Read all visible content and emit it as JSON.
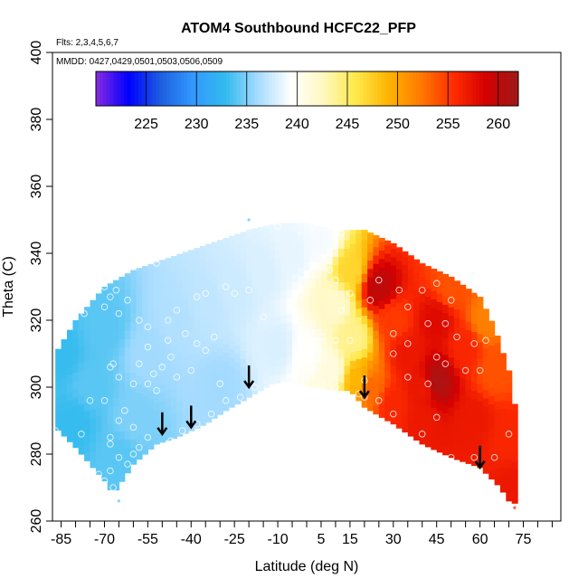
{
  "chart_data": {
    "type": "heatmap",
    "title": "ATOM4 Southbound HCFC22_PFP",
    "flights_label": "Flts: 2,3,4,5,6,7",
    "dates_label": "MMDD: 0427,0429,0501,0503,0506,0509",
    "xlabel": "Latitude (deg N)",
    "ylabel": "Theta (C)",
    "xlim": [
      -88,
      88
    ],
    "ylim": [
      260,
      400
    ],
    "x_ticks": [
      -85,
      -70,
      -55,
      -40,
      -25,
      -10,
      5,
      15,
      30,
      45,
      60,
      75
    ],
    "y_ticks": [
      260,
      280,
      300,
      320,
      340,
      360,
      380,
      400
    ],
    "colorbar": {
      "range": [
        220,
        262
      ],
      "ticks": [
        225,
        230,
        235,
        240,
        245,
        250,
        255,
        260
      ],
      "colors": [
        "#8a2be2",
        "#0000ff",
        "#1e5fe0",
        "#3399ff",
        "#33bbee",
        "#a8dcff",
        "#ffffff",
        "#fff8c0",
        "#ffe94a",
        "#ffb400",
        "#ff7a00",
        "#ff2d00",
        "#d40000",
        "#9e1a1a"
      ]
    },
    "envelope": {
      "top": [
        [
          -87,
          310
        ],
        [
          -80,
          320
        ],
        [
          -70,
          330
        ],
        [
          -60,
          335
        ],
        [
          -50,
          338
        ],
        [
          -40,
          341
        ],
        [
          -30,
          344
        ],
        [
          -20,
          347
        ],
        [
          -10,
          349
        ],
        [
          0,
          349
        ],
        [
          10,
          347
        ],
        [
          20,
          347
        ],
        [
          30,
          343
        ],
        [
          40,
          337
        ],
        [
          50,
          333
        ],
        [
          60,
          327
        ],
        [
          65,
          318
        ],
        [
          70,
          305
        ],
        [
          72,
          295
        ],
        [
          73,
          285
        ],
        [
          73,
          265
        ]
      ],
      "bottom": [
        [
          -87,
          288
        ],
        [
          -80,
          282
        ],
        [
          -70,
          272
        ],
        [
          -67,
          268
        ],
        [
          -60,
          277
        ],
        [
          -52,
          283
        ],
        [
          -45,
          285
        ],
        [
          -35,
          289
        ],
        [
          -28,
          293
        ],
        [
          -20,
          297
        ],
        [
          -12,
          301
        ],
        [
          -5,
          302
        ],
        [
          0,
          300
        ],
        [
          5,
          300
        ],
        [
          10,
          299
        ],
        [
          15,
          299
        ],
        [
          20,
          294
        ],
        [
          30,
          289
        ],
        [
          40,
          283
        ],
        [
          50,
          279
        ],
        [
          60,
          276
        ],
        [
          67,
          270
        ],
        [
          70,
          266
        ],
        [
          73,
          265
        ]
      ]
    },
    "field_nodes": [
      [
        -85,
        310,
        233
      ],
      [
        -70,
        318,
        234
      ],
      [
        -55,
        310,
        236
      ],
      [
        -45,
        320,
        236.5
      ],
      [
        -35,
        325,
        237
      ],
      [
        -25,
        330,
        237.5
      ],
      [
        -15,
        335,
        238
      ],
      [
        -5,
        340,
        238.5
      ],
      [
        5,
        343,
        239
      ],
      [
        -30,
        300,
        236
      ],
      [
        -10,
        312,
        238
      ],
      [
        0,
        310,
        239.5
      ],
      [
        8,
        305,
        241
      ],
      [
        10,
        325,
        242
      ],
      [
        15,
        335,
        247
      ],
      [
        16,
        315,
        244
      ],
      [
        18,
        302,
        249
      ],
      [
        22,
        300,
        253
      ],
      [
        25,
        330,
        260
      ],
      [
        30,
        320,
        255
      ],
      [
        35,
        310,
        257
      ],
      [
        40,
        300,
        257
      ],
      [
        45,
        320,
        258
      ],
      [
        45,
        302,
        261
      ],
      [
        50,
        330,
        254
      ],
      [
        55,
        312,
        256
      ],
      [
        58,
        290,
        257
      ],
      [
        62,
        320,
        252
      ],
      [
        65,
        305,
        254
      ],
      [
        70,
        285,
        256
      ],
      [
        72,
        270,
        257
      ],
      [
        40,
        290,
        257
      ],
      [
        30,
        295,
        256
      ],
      [
        -60,
        290,
        235
      ],
      [
        -75,
        300,
        234
      ],
      [
        -80,
        290,
        233
      ],
      [
        -65,
        280,
        234
      ]
    ],
    "samples": [
      [
        -87,
        287
      ],
      [
        -78,
        286
      ],
      [
        -84,
        321
      ],
      [
        -77,
        322
      ],
      [
        -70,
        330
      ],
      [
        -68,
        327
      ],
      [
        -66,
        329
      ],
      [
        -62,
        326
      ],
      [
        -70,
        324
      ],
      [
        -65,
        322
      ],
      [
        -58,
        320
      ],
      [
        -55,
        318
      ],
      [
        -48,
        320
      ],
      [
        -45,
        323
      ],
      [
        -38,
        327
      ],
      [
        -35,
        328
      ],
      [
        -28,
        330
      ],
      [
        -25,
        328
      ],
      [
        -20,
        329
      ],
      [
        -15,
        321
      ],
      [
        -52,
        337
      ],
      [
        -55,
        312
      ],
      [
        -48,
        314
      ],
      [
        -42,
        316
      ],
      [
        -38,
        313
      ],
      [
        -35,
        311
      ],
      [
        -32,
        315
      ],
      [
        -47,
        309
      ],
      [
        -50,
        306
      ],
      [
        -45,
        303
      ],
      [
        -40,
        305
      ],
      [
        -60,
        301
      ],
      [
        -65,
        303
      ],
      [
        -68,
        306
      ],
      [
        -67,
        307
      ],
      [
        -58,
        307
      ],
      [
        -53,
        304
      ],
      [
        -55,
        301
      ],
      [
        -52,
        299
      ],
      [
        -70,
        296
      ],
      [
        -75,
        296
      ],
      [
        -63,
        293
      ],
      [
        -65,
        290
      ],
      [
        -60,
        288
      ],
      [
        -68,
        285
      ],
      [
        -68,
        283
      ],
      [
        -55,
        285
      ],
      [
        -47,
        284
      ],
      [
        -43,
        287
      ],
      [
        -38,
        289
      ],
      [
        -33,
        292
      ],
      [
        -28,
        296
      ],
      [
        -23,
        297
      ],
      [
        -18,
        300
      ],
      [
        -8,
        301
      ],
      [
        0,
        299
      ],
      [
        5,
        301
      ],
      [
        10,
        300
      ],
      [
        -30,
        301
      ],
      [
        -58,
        282
      ],
      [
        -60,
        280
      ],
      [
        -65,
        279
      ],
      [
        -68,
        275
      ],
      [
        -70,
        272
      ],
      [
        -72,
        274
      ],
      [
        -67,
        270
      ],
      [
        -62,
        277
      ],
      [
        -10,
        348
      ],
      [
        2,
        348
      ],
      [
        12,
        346
      ],
      [
        5,
        339
      ],
      [
        8,
        335
      ],
      [
        10,
        332
      ],
      [
        15,
        328
      ],
      [
        12,
        323
      ],
      [
        5,
        315
      ],
      [
        10,
        314
      ],
      [
        15,
        314
      ],
      [
        0,
        315
      ],
      [
        3,
        305
      ],
      [
        18,
        298
      ],
      [
        20,
        297
      ],
      [
        25,
        296
      ],
      [
        20,
        302
      ],
      [
        25,
        332
      ],
      [
        32,
        329
      ],
      [
        35,
        324
      ],
      [
        40,
        329
      ],
      [
        45,
        331
      ],
      [
        50,
        326
      ],
      [
        55,
        332
      ],
      [
        60,
        328
      ],
      [
        22,
        326
      ],
      [
        30,
        316
      ],
      [
        35,
        313
      ],
      [
        42,
        319
      ],
      [
        48,
        319
      ],
      [
        52,
        315
      ],
      [
        58,
        313
      ],
      [
        62,
        314
      ],
      [
        45,
        309
      ],
      [
        48,
        307
      ],
      [
        55,
        305
      ],
      [
        60,
        305
      ],
      [
        35,
        303
      ],
      [
        30,
        310
      ],
      [
        42,
        301
      ],
      [
        45,
        291
      ],
      [
        40,
        286
      ],
      [
        30,
        292
      ],
      [
        50,
        279
      ],
      [
        58,
        279
      ],
      [
        65,
        279
      ],
      [
        70,
        286
      ]
    ],
    "arrows": [
      [
        -50,
        286
      ],
      [
        -40,
        288
      ],
      [
        -20,
        300
      ],
      [
        20,
        297
      ],
      [
        60,
        276
      ]
    ],
    "edge_marks": [
      [
        -65,
        266,
        "#7fd4ff"
      ],
      [
        -20,
        350,
        "#7fd4ff"
      ],
      [
        72,
        264,
        "#ff5a40"
      ]
    ]
  }
}
